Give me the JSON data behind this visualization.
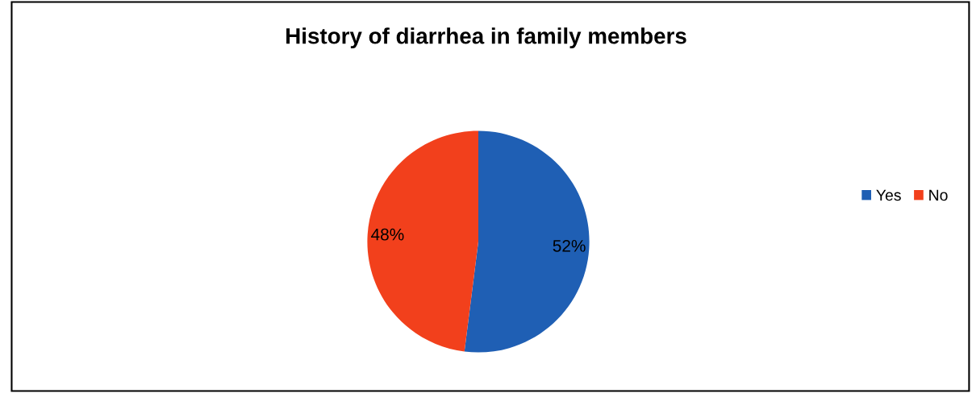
{
  "chart_data": {
    "type": "pie",
    "title": "History of diarrhea in family members",
    "categories": [
      "Yes",
      "No"
    ],
    "values": [
      52,
      48
    ],
    "colors": [
      "#1f5fb4",
      "#f2401c"
    ],
    "value_labels": [
      "52%",
      "48%"
    ],
    "legend": "right"
  }
}
